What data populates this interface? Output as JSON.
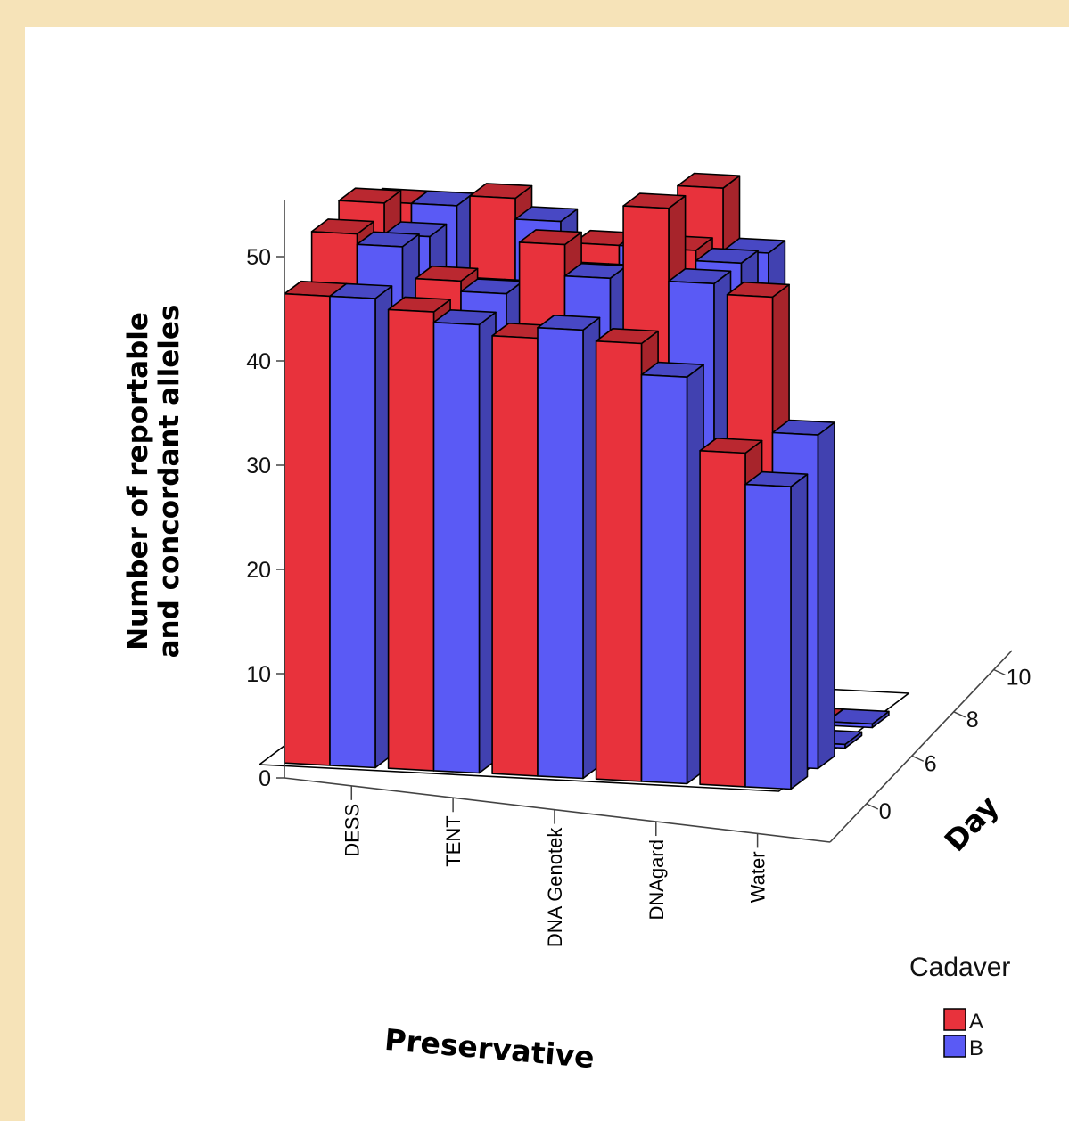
{
  "chart_data": {
    "type": "bar",
    "subtype": "3d-clustered",
    "title": "",
    "xlabel": "Preservative",
    "ylabel": "Number of reportable and concordant alleles",
    "ylabel_lines": [
      "Number of reportable",
      "and concordant alleles"
    ],
    "zlabel": "Day",
    "categories": [
      "DESS",
      "TENT",
      "DNA Genotek",
      "DNAgard",
      "Water"
    ],
    "days": [
      "0",
      "6",
      "8",
      "10"
    ],
    "yticks": [
      "0",
      "10",
      "20",
      "30",
      "40",
      "50"
    ],
    "ylim": [
      0,
      55
    ],
    "series": [
      {
        "name": "A",
        "color": "#e8323c",
        "values_by_day": {
          "0": [
            45,
            44,
            42,
            42,
            32
          ],
          "6": [
            49,
            45,
            49,
            53,
            45
          ],
          "8": [
            50,
            42,
            44,
            47,
            0
          ],
          "10": [
            48,
            49,
            45,
            51,
            0
          ]
        }
      },
      {
        "name": "B",
        "color": "#5a5af5",
        "values_by_day": {
          "0": [
            45,
            43,
            43,
            39,
            29
          ],
          "6": [
            48,
            44,
            46,
            46,
            32
          ],
          "8": [
            47,
            42,
            44,
            46,
            0
          ],
          "10": [
            48,
            47,
            45,
            45,
            0
          ]
        }
      }
    ],
    "grid": false
  },
  "legend": {
    "title": "Cadaver",
    "items": [
      {
        "label": "A",
        "color": "#e8323c"
      },
      {
        "label": "B",
        "color": "#5a5af5"
      }
    ]
  }
}
